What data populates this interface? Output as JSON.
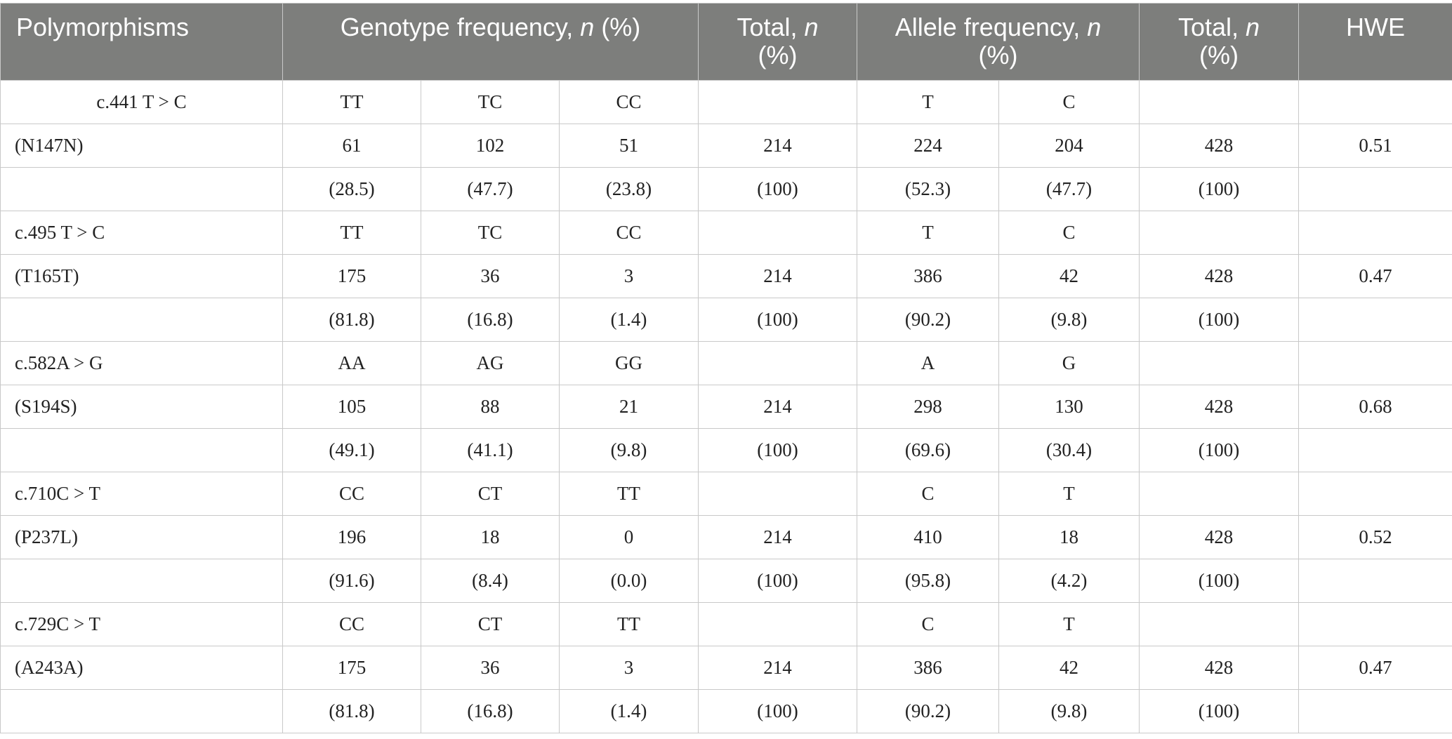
{
  "header": {
    "polymorphisms": "Polymorphisms",
    "genotype_frequency": "Genotype frequency,",
    "genotype_frequency_n": "n",
    "genotype_frequency_pct": "(%)",
    "total_genotype": "Total,",
    "total_genotype_n": "n",
    "total_genotype_pct": "(%)",
    "allele_frequency": "Allele frequency,",
    "allele_frequency_n": "n",
    "allele_frequency_pct": "(%)",
    "total_allele": "Total,",
    "total_allele_n": "n",
    "total_allele_pct": "(%)",
    "hwe": "HWE"
  },
  "rows": [
    {
      "label": "c.441 T > C",
      "g1": "TT",
      "g2": "TC",
      "g3": "CC",
      "total_g": "",
      "a1": "T",
      "a2": "C",
      "total_a": "",
      "hwe": ""
    },
    {
      "label": "(N147N)",
      "g1": "61",
      "g2": "102",
      "g3": "51",
      "total_g": "214",
      "a1": "224",
      "a2": "204",
      "total_a": "428",
      "hwe": "0.51"
    },
    {
      "label": "",
      "g1": "(28.5)",
      "g2": "(47.7)",
      "g3": "(23.8)",
      "total_g": "(100)",
      "a1": "(52.3)",
      "a2": "(47.7)",
      "total_a": "(100)",
      "hwe": ""
    },
    {
      "label": "c.495 T > C",
      "g1": "TT",
      "g2": "TC",
      "g3": "CC",
      "total_g": "",
      "a1": "T",
      "a2": "C",
      "total_a": "",
      "hwe": ""
    },
    {
      "label": "(T165T)",
      "g1": "175",
      "g2": "36",
      "g3": "3",
      "total_g": "214",
      "a1": "386",
      "a2": "42",
      "total_a": "428",
      "hwe": "0.47"
    },
    {
      "label": "",
      "g1": "(81.8)",
      "g2": "(16.8)",
      "g3": "(1.4)",
      "total_g": "(100)",
      "a1": "(90.2)",
      "a2": "(9.8)",
      "total_a": "(100)",
      "hwe": ""
    },
    {
      "label": "c.582A > G",
      "g1": "AA",
      "g2": "AG",
      "g3": "GG",
      "total_g": "",
      "a1": "A",
      "a2": "G",
      "total_a": "",
      "hwe": ""
    },
    {
      "label": "(S194S)",
      "g1": "105",
      "g2": "88",
      "g3": "21",
      "total_g": "214",
      "a1": "298",
      "a2": "130",
      "total_a": "428",
      "hwe": "0.68"
    },
    {
      "label": "",
      "g1": "(49.1)",
      "g2": "(41.1)",
      "g3": "(9.8)",
      "total_g": "(100)",
      "a1": "(69.6)",
      "a2": "(30.4)",
      "total_a": "(100)",
      "hwe": ""
    },
    {
      "label": "c.710C > T",
      "g1": "CC",
      "g2": "CT",
      "g3": "TT",
      "total_g": "",
      "a1": "C",
      "a2": "T",
      "total_a": "",
      "hwe": ""
    },
    {
      "label": "(P237L)",
      "g1": "196",
      "g2": "18",
      "g3": "0",
      "total_g": "214",
      "a1": "410",
      "a2": "18",
      "total_a": "428",
      "hwe": "0.52"
    },
    {
      "label": "",
      "g1": "(91.6)",
      "g2": "(8.4)",
      "g3": "(0.0)",
      "total_g": "(100)",
      "a1": "(95.8)",
      "a2": "(4.2)",
      "total_a": "(100)",
      "hwe": ""
    },
    {
      "label": "c.729C > T",
      "g1": "CC",
      "g2": "CT",
      "g3": "TT",
      "total_g": "",
      "a1": "C",
      "a2": "T",
      "total_a": "",
      "hwe": ""
    },
    {
      "label": "(A243A)",
      "g1": "175",
      "g2": "36",
      "g3": "3",
      "total_g": "214",
      "a1": "386",
      "a2": "42",
      "total_a": "428",
      "hwe": "0.47"
    },
    {
      "label": "",
      "g1": "(81.8)",
      "g2": "(16.8)",
      "g3": "(1.4)",
      "total_g": "(100)",
      "a1": "(90.2)",
      "a2": "(9.8)",
      "total_a": "(100)",
      "hwe": ""
    }
  ]
}
